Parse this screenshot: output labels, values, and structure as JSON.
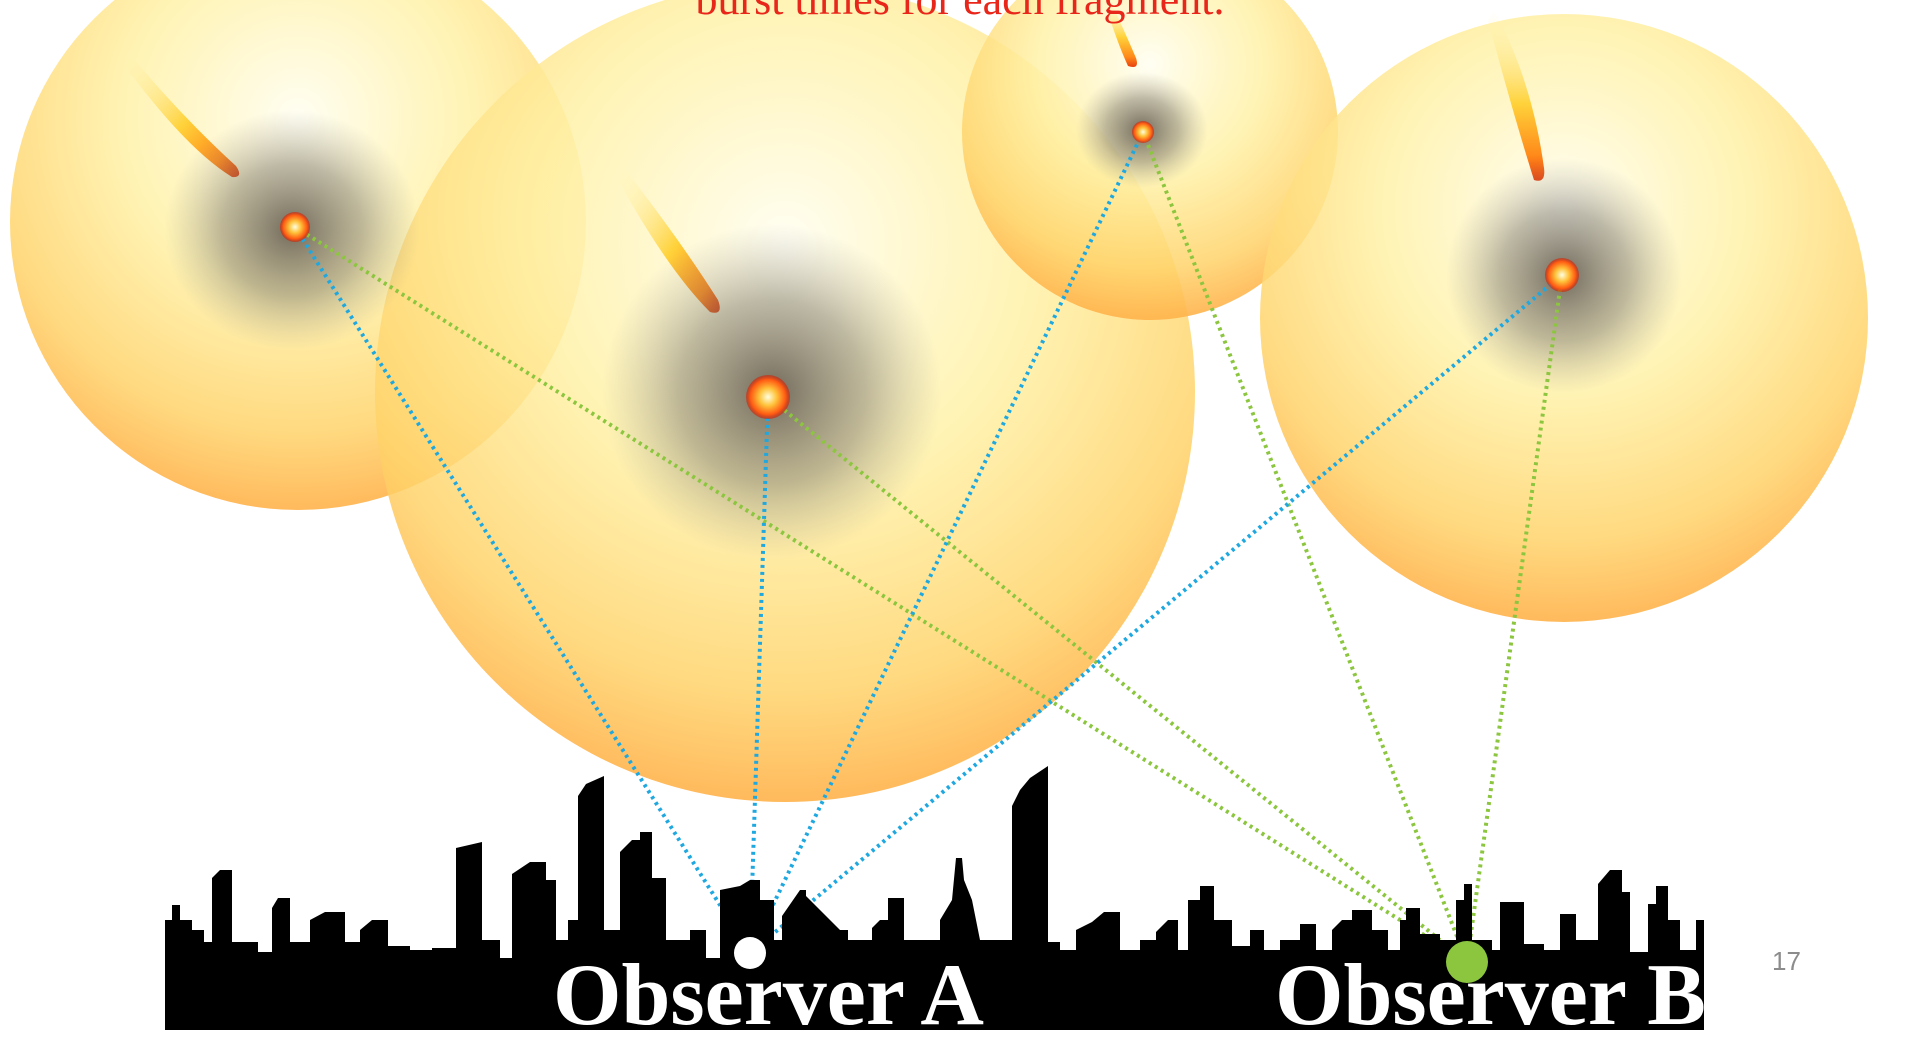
{
  "slide": {
    "caption": "burst times for each fragment.",
    "page_number": "17"
  },
  "observers": {
    "a": {
      "label": "Observer A"
    },
    "b": {
      "label": "Observer B"
    }
  },
  "colors": {
    "line_to_a": "#1fa8e0",
    "line_to_b": "#8cc63f",
    "observer_a_dot": "#ffffff",
    "observer_b_dot": "#8cc63f",
    "caption": "#e8261a",
    "skyline": "#000000"
  },
  "fragments": [
    {
      "name": "fragment-1-icon"
    },
    {
      "name": "fragment-2-icon"
    },
    {
      "name": "fragment-3-icon"
    },
    {
      "name": "fragment-4-icon"
    }
  ]
}
